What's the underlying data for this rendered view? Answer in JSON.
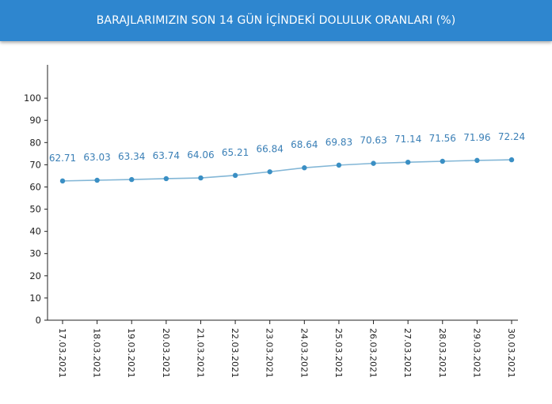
{
  "header": {
    "title": "BARAJLARIMIZIN SON 14 GÜN İÇİNDEKİ DOLULUK ORANLARI (%)"
  },
  "colors": {
    "header_bg": "#2e86cf",
    "line": "#82b6d6",
    "point": "#3a8fc4",
    "data_label": "#3a7fb6"
  },
  "chart_data": {
    "type": "line",
    "title": "BARAJLARIMIZIN SON 14 GÜN İÇİNDEKİ DOLULUK ORANLARI (%)",
    "categories": [
      "17.03.2021",
      "18.03.2021",
      "19.03.2021",
      "20.03.2021",
      "21.03.2021",
      "22.03.2021",
      "23.03.2021",
      "24.03.2021",
      "25.03.2021",
      "26.03.2021",
      "27.03.2021",
      "28.03.2021",
      "29.03.2021",
      "30.03.2021"
    ],
    "values": [
      62.71,
      63.03,
      63.34,
      63.74,
      64.06,
      65.21,
      66.84,
      68.64,
      69.83,
      70.63,
      71.14,
      71.56,
      71.96,
      72.24
    ],
    "value_labels": [
      "62.71",
      "63.03",
      "63.34",
      "63.74",
      "64.06",
      "65.21",
      "66.84",
      "68.64",
      "69.83",
      "70.63",
      "71.14",
      "71.56",
      "71.96",
      "72.24"
    ],
    "y_ticks": [
      "0",
      "10",
      "20",
      "30",
      "40",
      "50",
      "60",
      "70",
      "80",
      "90",
      "100"
    ],
    "ylim": [
      0,
      115
    ],
    "grid": false,
    "legend": "none"
  }
}
